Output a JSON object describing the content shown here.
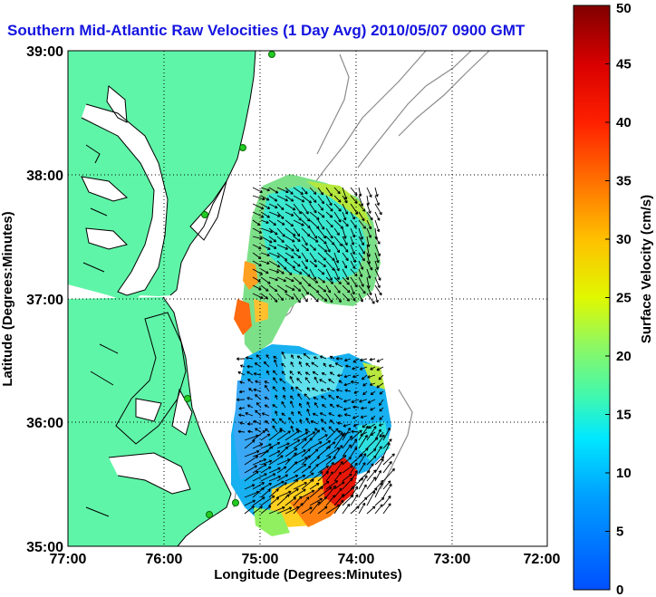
{
  "title": "Southern Mid-Atlantic Raw Velocities (1 Day Avg) 2010/05/07 0900 GMT",
  "axes": {
    "xlabel": "Longitude (Degrees:Minutes)",
    "ylabel": "Latitude (Degrees:Minutes)",
    "xticks": [
      "77:00",
      "76:00",
      "75:00",
      "74:00",
      "73:00",
      "72:00"
    ],
    "yticks": [
      "39:00",
      "38:00",
      "37:00",
      "36:00",
      "35:00"
    ]
  },
  "colorbar": {
    "label": "Surface Velocity (cm/s)",
    "ticks": [
      "0",
      "5",
      "10",
      "15",
      "20",
      "25",
      "30",
      "35",
      "40",
      "45",
      "50"
    ],
    "min": 0,
    "max": 50,
    "unit": "cm/s"
  },
  "map": {
    "lon_range": [
      -77,
      -72
    ],
    "lat_range": [
      35,
      39
    ],
    "land_color": "#5ff5a8",
    "grid": "dotted",
    "stations": [
      "site-1",
      "site-2",
      "site-3",
      "site-4",
      "site-5",
      "site-6"
    ]
  },
  "colors": {
    "title": "#1414e0",
    "bathymetry": "#8c8c8c",
    "vector": "#000000"
  }
}
